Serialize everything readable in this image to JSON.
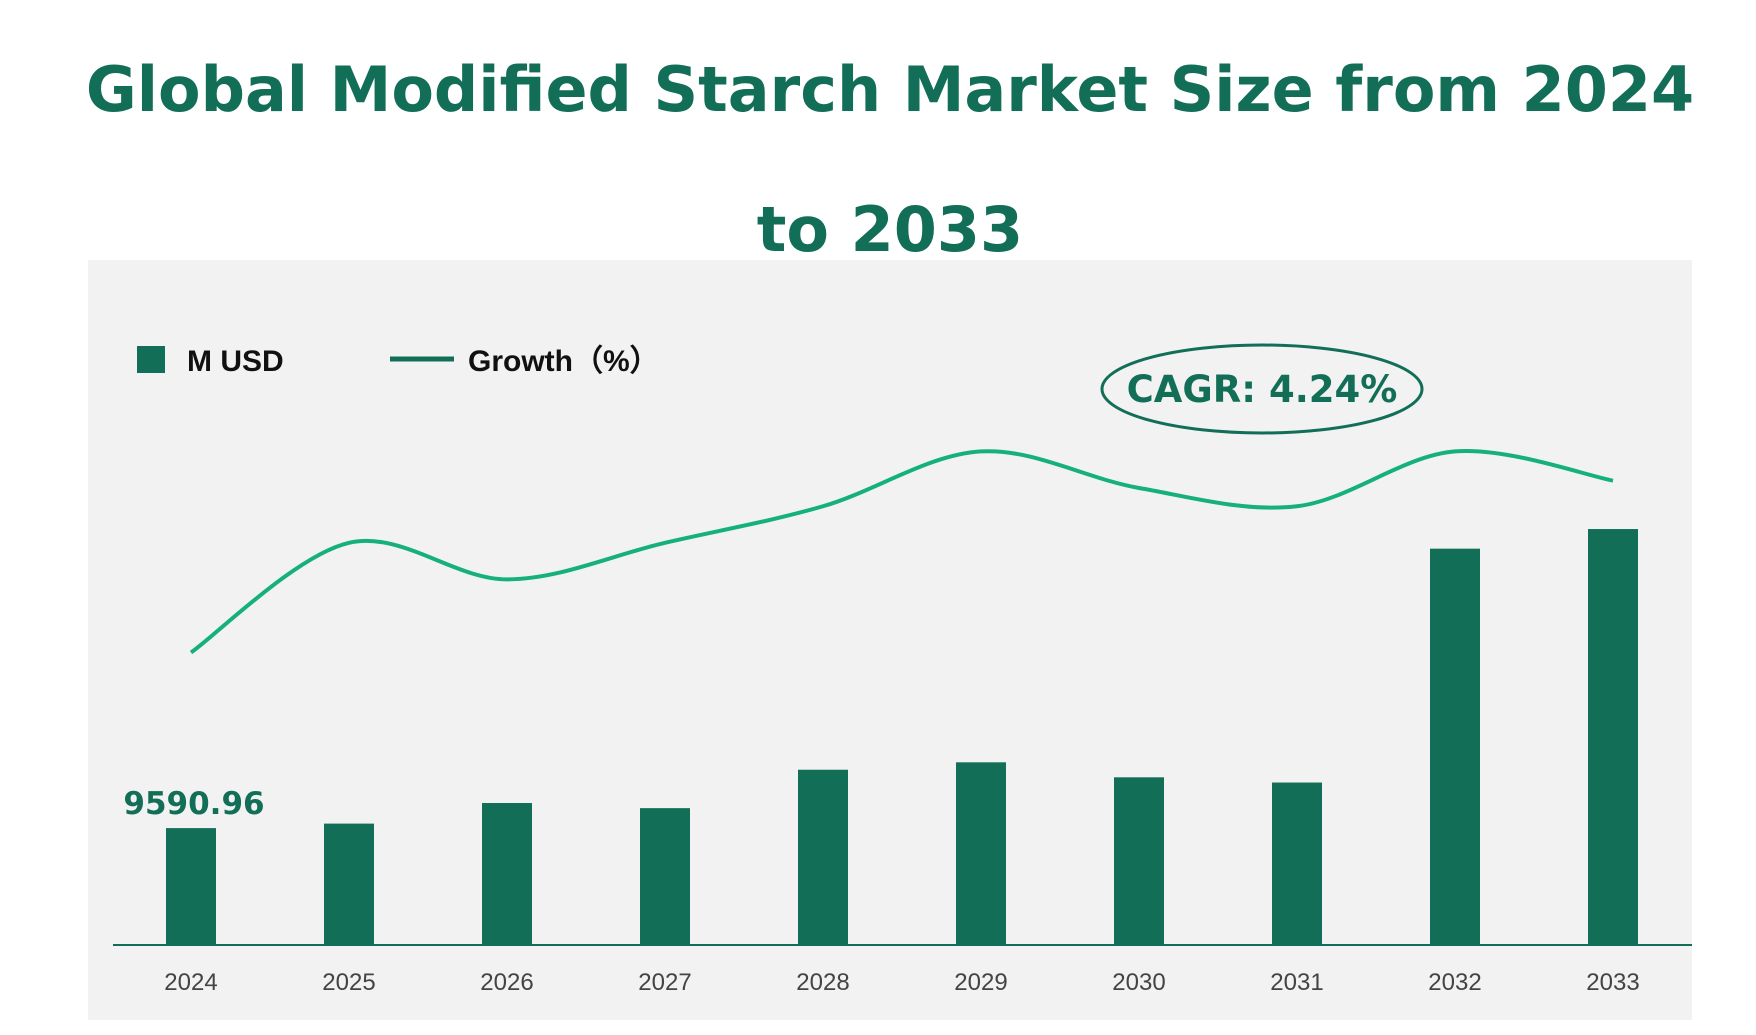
{
  "title": "Global Modified Starch Market Size from 2024 to 2033",
  "colors": {
    "bar": "#126E57",
    "line": "#16B07C",
    "title": "#126E57",
    "background": "#F2F2F2"
  },
  "legend": {
    "bar_label": "M USD",
    "line_label": "Growth（%）"
  },
  "cagr_label": "CAGR: 4.24%",
  "chart_data": {
    "type": "bar",
    "title": "Global Modified Starch Market Size from 2024 to 2033",
    "categories": [
      "2024",
      "2025",
      "2026",
      "2027",
      "2028",
      "2029",
      "2030",
      "2031",
      "2032",
      "2033"
    ],
    "series": [
      {
        "name": "M USD",
        "type": "bar",
        "values": [
          9590.96,
          9960,
          11650,
          11230,
          14380,
          14990,
          13760,
          13330,
          32520,
          34130
        ]
      },
      {
        "name": "Growth（%）",
        "type": "line",
        "values": [
          3.8,
          4.1,
          4.0,
          4.1,
          4.2,
          4.35,
          4.25,
          4.2,
          4.35,
          4.27
        ]
      }
    ],
    "data_labels": [
      {
        "category": "2024",
        "text": "9590.96"
      }
    ],
    "bar_axis_range": [
      0,
      48000
    ],
    "line_axis_range": [
      3.0,
      4.6
    ],
    "xlabel": "",
    "ylabel": "",
    "grid": false,
    "legend_position": "top-left"
  }
}
